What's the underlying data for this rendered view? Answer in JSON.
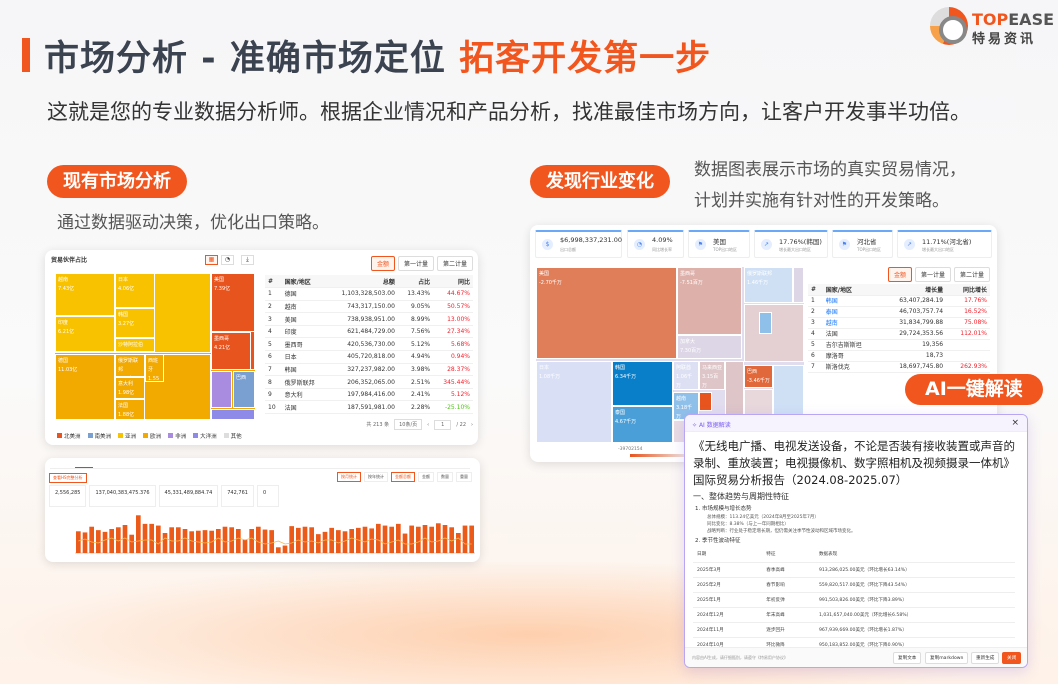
{
  "header": {
    "title_main": "市场分析 - 准确市场定位",
    "title_highlight": "拓客开发第一步",
    "subtitle": "这就是您的专业数据分析师。根据企业情况和产品分析，找准最佳市场方向，让客户开发事半功倍。"
  },
  "logo": {
    "brand_top": "TOP",
    "brand_rest": "EASE",
    "brand_cn": "特易资讯"
  },
  "left_section": {
    "pill": "现有市场分析",
    "desc": "通过数据驱动决策，优化出口策略。"
  },
  "right_section": {
    "pill": "发现行业变化",
    "desc_line1": "数据图表展示市场的真实贸易情况，",
    "desc_line2": "计划并实施有针对性的开发策略。"
  },
  "colors": {
    "accent": "#f0561e",
    "asia": "#f8c200",
    "europe": "#f2a900",
    "north_america": "#e8541e",
    "south_america": "#7a9fd1",
    "africa": "#a98ce0",
    "oceania": "#8e8ae8"
  },
  "partner_card": {
    "title": "贸易伙伴占比",
    "treemap": [
      {
        "name": "越南",
        "value": "7.43亿",
        "region": "asia"
      },
      {
        "name": "印度",
        "value": "6.21亿",
        "region": "asia"
      },
      {
        "name": "日本",
        "value": "4.06亿",
        "region": "asia"
      },
      {
        "name": "韩国",
        "value": "3.27亿",
        "region": "asia"
      },
      {
        "name": "沙特阿拉伯",
        "value": "",
        "region": "asia"
      },
      {
        "name": "德国",
        "value": "11.03亿",
        "region": "europe"
      },
      {
        "name": "俄罗斯联邦",
        "value": "2.06亿",
        "region": "europe"
      },
      {
        "name": "意大利",
        "value": "1.98亿",
        "region": "europe"
      },
      {
        "name": "法国",
        "value": "1.88亿",
        "region": "europe"
      },
      {
        "name": "西班牙",
        "value": "1.55亿",
        "region": "europe"
      },
      {
        "name": "美国",
        "value": "7.39亿",
        "region": "north_america"
      },
      {
        "name": "墨西哥",
        "value": "4.21亿",
        "region": "north_america"
      },
      {
        "name": "巴西",
        "value": "",
        "region": "south_america"
      }
    ],
    "legend": [
      {
        "label": "北美洲",
        "color": "#e8541e"
      },
      {
        "label": "南美洲",
        "color": "#7a9fd1"
      },
      {
        "label": "亚洲",
        "color": "#f8c200"
      },
      {
        "label": "欧洲",
        "color": "#f2a900"
      },
      {
        "label": "非洲",
        "color": "#a98ce0"
      },
      {
        "label": "大洋洲",
        "color": "#8e8ae8"
      },
      {
        "label": "其他",
        "color": "#dddddd"
      }
    ],
    "toggles": [
      "金额",
      "第一计量",
      "第二计量"
    ],
    "columns": [
      "#",
      "国家/地区",
      "总额",
      "占比",
      "同比"
    ],
    "rows": [
      [
        "1",
        "德国",
        "1,103,328,503.00",
        "13.43%",
        "44.67%"
      ],
      [
        "2",
        "越南",
        "743,317,150.00",
        "9.05%",
        "50.57%"
      ],
      [
        "3",
        "美国",
        "738,938,951.00",
        "8.99%",
        "13.00%"
      ],
      [
        "4",
        "印度",
        "621,484,729.00",
        "7.56%",
        "27.34%"
      ],
      [
        "5",
        "墨西哥",
        "420,536,730.00",
        "5.12%",
        "5.68%"
      ],
      [
        "6",
        "日本",
        "405,720,818.00",
        "4.94%",
        "0.94%"
      ],
      [
        "7",
        "韩国",
        "327,237,982.00",
        "3.98%",
        "28.37%"
      ],
      [
        "8",
        "俄罗斯联邦",
        "206,352,065.00",
        "2.51%",
        "345.44%"
      ],
      [
        "9",
        "意大利",
        "197,984,416.00",
        "2.41%",
        "5.12%"
      ],
      [
        "10",
        "法国",
        "187,591,981.00",
        "2.28%",
        "-25.10%"
      ]
    ],
    "pagination": {
      "total": "共 213 条",
      "page_size": "10条/页",
      "page": "1",
      "pages": "/ 22"
    }
  },
  "trend_card": {
    "action_button": "查看HS完整分析",
    "buttons": [
      "按月统计",
      "按年统计",
      "金额总额",
      "金额",
      "数量",
      "重量"
    ],
    "stats": [
      "2,556,285",
      "137,040,383,475.376",
      "45,331,489,884.74",
      "742,761",
      "0"
    ],
    "bars": [
      38,
      36,
      46,
      40,
      37,
      42,
      45,
      49,
      32,
      66,
      51,
      51,
      48,
      35,
      45,
      45,
      42,
      38,
      39,
      40,
      39,
      42,
      46,
      45,
      42,
      23,
      42,
      46,
      41,
      40,
      10,
      13,
      47,
      44,
      46,
      45,
      33,
      37,
      44,
      40,
      38,
      42,
      44,
      46,
      43,
      51,
      48,
      46,
      51,
      34,
      48,
      46,
      49,
      46,
      52,
      49,
      45,
      35,
      48,
      48
    ]
  },
  "growth_card": {
    "stats": [
      {
        "icon": "dollar-icon",
        "value": "$6,998,337,231.00",
        "label": "出口总额"
      },
      {
        "icon": "pie-icon",
        "value": "4.09%",
        "label": "同比增长率"
      },
      {
        "icon": "flag-icon",
        "value": "美国",
        "label": "TOP出口地区"
      },
      {
        "icon": "chart-up-icon",
        "value": "17.76%(韩国)",
        "label": "增长最大出口地区"
      },
      {
        "icon": "flag-icon",
        "value": "河北省",
        "label": "TOP出口地区"
      },
      {
        "icon": "chart-up-icon",
        "value": "11.71%(河北省)",
        "label": "增长最大出口地区"
      }
    ],
    "treemap": [
      {
        "name": "美国",
        "value": "-2.70千万"
      },
      {
        "name": "墨西哥",
        "value": "-7.51百万"
      },
      {
        "name": "加拿大",
        "value": "7.30百万"
      },
      {
        "name": "俄罗斯联邦",
        "value": "1.46千万"
      },
      {
        "name": "日本",
        "value": "1.08千万"
      },
      {
        "name": "韩国",
        "value": "6.34千万"
      },
      {
        "name": "泰国",
        "value": "4.67千万"
      },
      {
        "name": "阿联酋",
        "value": "1.06千万"
      },
      {
        "name": "马来西亚",
        "value": "3.15百万"
      },
      {
        "name": "越南",
        "value": "3.18千万"
      },
      {
        "name": "巴西",
        "value": "-3.46千万"
      }
    ],
    "scale_min": "-39702154",
    "toggles": [
      "金额",
      "第一计量",
      "第二计量"
    ],
    "columns": [
      "#",
      "国家/地区",
      "增长量",
      "同比增长"
    ],
    "rows": [
      [
        "1",
        "韩国",
        "63,407,284.19",
        "17.76%"
      ],
      [
        "2",
        "泰国",
        "46,703,757.74",
        "16.52%"
      ],
      [
        "3",
        "越南",
        "31,834,799.88",
        "75.08%"
      ],
      [
        "4",
        "法国",
        "29,724,353.56",
        "112.01%"
      ],
      [
        "5",
        "吉尔吉斯斯坦",
        "19,356",
        ""
      ],
      [
        "6",
        "摩洛哥",
        "18,73",
        ""
      ],
      [
        "7",
        "斯洛伐克",
        "18,697,745.80",
        "262.93%"
      ]
    ]
  },
  "ai_tag": "AI一键解读",
  "ai_panel": {
    "header": "AI 数据解读",
    "title": "《无线电广播、电视发送设备，不论是否装有接收装置或声音的录制、重放装置；电视摄像机、数字照相机及视频摄录一体机》国际贸易分析报告（2024.08-2025.07）",
    "section": "一、整体趋势与周期性特征",
    "item1": "1. 市场规模与增长态势",
    "item1_lines": [
      "总体规模：113.24亿美元（2024年8月至2025年7月）",
      "同比变化：8.38%（与上一年同期相比）",
      "战略判断：行业处于稳定增长期，但仍需关注季节性波动和区域市场变化。"
    ],
    "item2": "2. 季节性波动特征",
    "table_columns": [
      "日期",
      "特征",
      "数据表现"
    ],
    "table_rows": [
      [
        "2025年3月",
        "春季高峰",
        "913,286,025.00美元（环比增长63.14%）"
      ],
      [
        "2025年2月",
        "春节影响",
        "559,820,517.00美元（环比下降43.54%）"
      ],
      [
        "2025年1月",
        "年初反弹",
        "991,503,826.00美元（环比下降3.89%）"
      ],
      [
        "2024年12月",
        "年末高峰",
        "1,031,657,040.00美元（环比增长6.58%）"
      ],
      [
        "2024年11月",
        "逐步回升",
        "967,939,669.00美元（环比增长1.87%）"
      ],
      [
        "2024年10月",
        "环比微降",
        "950,183,852.00美元（环比下降0.90%）"
      ]
    ],
    "footer_note": "内容由AI生成，请仔细甄别，请遵守《特易用户协议》",
    "copy_text": "复制文本",
    "copy_markdown": "复制markdown",
    "regenerate": "重新生成",
    "close": "关闭"
  }
}
